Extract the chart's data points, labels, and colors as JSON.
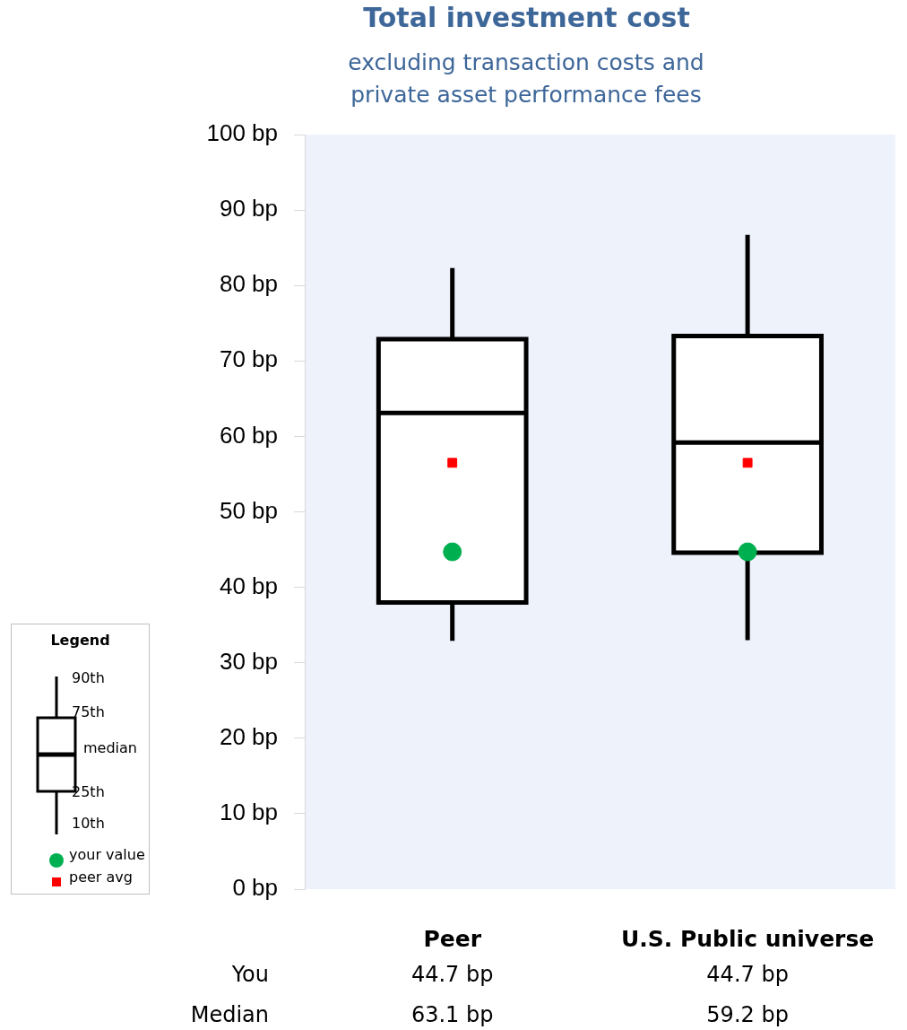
{
  "chart_data": {
    "type": "box",
    "title": "Total investment cost",
    "subtitle": "excluding transaction costs and private asset performance fees",
    "categories": [
      "Peer",
      "U.S. Public universe"
    ],
    "boxes": [
      {
        "low": 32.9,
        "q1": 38,
        "median": 63.1,
        "q3": 72.9,
        "high": 82.3
      },
      {
        "low": 33,
        "q1": 44.6,
        "median": 59.2,
        "q3": 73.3,
        "high": 86.7
      }
    ],
    "series": [
      {
        "type": "scatter",
        "name": "your value",
        "color": "#00b050",
        "x": [
          "Peer",
          "U.S. Public universe"
        ],
        "values": [
          44.7,
          44.7
        ],
        "value_labels": [
          "44.7 bp",
          "44.7 bp"
        ]
      },
      {
        "type": "scatter",
        "name": "peer avg",
        "color": "#ff0000",
        "marker": "square",
        "x": [
          "Peer",
          "U.S. Public universe"
        ],
        "values": [
          56.5,
          56.5
        ]
      }
    ],
    "ylim": [
      0,
      100
    ],
    "yticks": [
      {
        "value": 0,
        "label": "0 bp"
      },
      {
        "value": 10,
        "label": "10 bp"
      },
      {
        "value": 20,
        "label": "20 bp"
      },
      {
        "value": 30,
        "label": "30 bp"
      },
      {
        "value": 40,
        "label": "40 bp"
      },
      {
        "value": 50,
        "label": "50 bp"
      },
      {
        "value": 60,
        "label": "60 bp"
      },
      {
        "value": 70,
        "label": "70 bp"
      },
      {
        "value": 80,
        "label": "80 bp"
      },
      {
        "value": 90,
        "label": "90 bp"
      },
      {
        "value": 100,
        "label": "100 bp"
      }
    ],
    "grid": false,
    "legend": "left",
    "legend_title": "Legend",
    "marker": "circle",
    "annotations": [
      "90th",
      "75th",
      "median",
      "25th",
      "10th",
      "You",
      "Median",
      "63.1 bp",
      "59.2 bp"
    ]
  }
}
